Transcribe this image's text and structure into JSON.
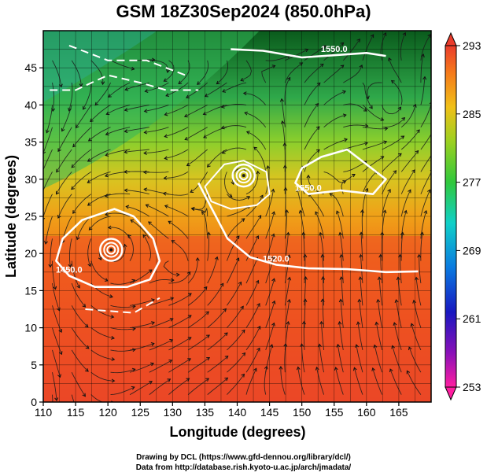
{
  "title": "GSM 18Z30Sep2024 (850.0hPa)",
  "credits": {
    "line1": "Drawing by DCL (https://www.gfd-dennou.org/library/dcl/)",
    "line2": "Data from http://database.rish.kyoto-u.ac.jp/arch/jmadata/"
  },
  "map": {
    "field": "temperature",
    "xlabel": "Longitude (degrees)",
    "ylabel": "Latitude  (degrees)",
    "x_ticks": [
      "110",
      "115",
      "120",
      "125",
      "130",
      "135",
      "140",
      "145",
      "150",
      "155",
      "160",
      "165"
    ],
    "y_ticks": [
      "0",
      "5",
      "10",
      "15",
      "20",
      "25",
      "30",
      "35",
      "40",
      "45"
    ],
    "xlim": [
      110,
      170
    ],
    "ylim": [
      0,
      50
    ],
    "grid": true,
    "contour_labels": [
      "1550.0",
      "1520.0",
      "1450.0"
    ],
    "contour_lines": [
      {
        "label": "1550.0",
        "points": [
          [
            139,
            47.5
          ],
          [
            144,
            47.3
          ],
          [
            150,
            46.4
          ],
          [
            155,
            46.7
          ],
          [
            160,
            47.0
          ],
          [
            163,
            46.6
          ]
        ]
      },
      {
        "label": "1520.0",
        "points": [
          [
            134,
            29.5
          ],
          [
            135.5,
            27
          ],
          [
            137,
            24.5
          ],
          [
            138.5,
            22
          ],
          [
            142,
            19.5
          ],
          [
            146,
            18.5
          ],
          [
            151,
            18.0
          ],
          [
            157,
            17.9
          ],
          [
            163,
            17.5
          ],
          [
            168,
            17.6
          ]
        ]
      },
      {
        "label": "1450.0",
        "points": [
          [
            124,
            25
          ],
          [
            127,
            22
          ],
          [
            128,
            19
          ],
          [
            126.5,
            16.5
          ],
          [
            123,
            15.5
          ],
          [
            118,
            15.5
          ],
          [
            114,
            17
          ],
          [
            112,
            19
          ],
          [
            113,
            22
          ],
          [
            116,
            24.5
          ],
          [
            121,
            26
          ],
          [
            124,
            25
          ]
        ]
      },
      {
        "label": "1550.0",
        "points": [
          [
            160,
            32
          ],
          [
            157,
            34
          ],
          [
            153,
            33
          ],
          [
            150,
            31.5
          ],
          [
            149,
            29.5
          ],
          [
            151,
            28
          ],
          [
            156,
            28.5
          ],
          [
            161,
            28
          ],
          [
            163,
            30
          ],
          [
            160,
            32
          ]
        ]
      },
      {
        "label": "",
        "points": [
          [
            135,
            29
          ],
          [
            138,
            32
          ],
          [
            141,
            32.5
          ],
          [
            144.5,
            31
          ],
          [
            145,
            28
          ],
          [
            143,
            26.5
          ],
          [
            139,
            26
          ],
          [
            136,
            27
          ],
          [
            135,
            29
          ]
        ]
      },
      {
        "label": "",
        "points": [
          [
            116.5,
            12.5
          ],
          [
            124,
            12
          ],
          [
            128,
            14
          ]
        ]
      },
      {
        "label": "",
        "points": [
          [
            111,
            42
          ],
          [
            115,
            42
          ],
          [
            120,
            44
          ],
          [
            125,
            43
          ],
          [
            129,
            42
          ],
          [
            134,
            42
          ]
        ]
      },
      {
        "label": "",
        "points": [
          [
            114,
            48
          ],
          [
            120,
            46
          ],
          [
            126,
            46
          ],
          [
            132,
            44
          ]
        ]
      }
    ],
    "lows": [
      {
        "lon": 120.5,
        "lat": 20.5,
        "label": "typhoon-center-1"
      },
      {
        "lon": 141.0,
        "lat": 30.5,
        "label": "typhoon-center-2"
      }
    ]
  },
  "colorbar": {
    "ticks": [
      "293",
      "285",
      "277",
      "269",
      "261",
      "253"
    ],
    "range": [
      253,
      293
    ]
  }
}
